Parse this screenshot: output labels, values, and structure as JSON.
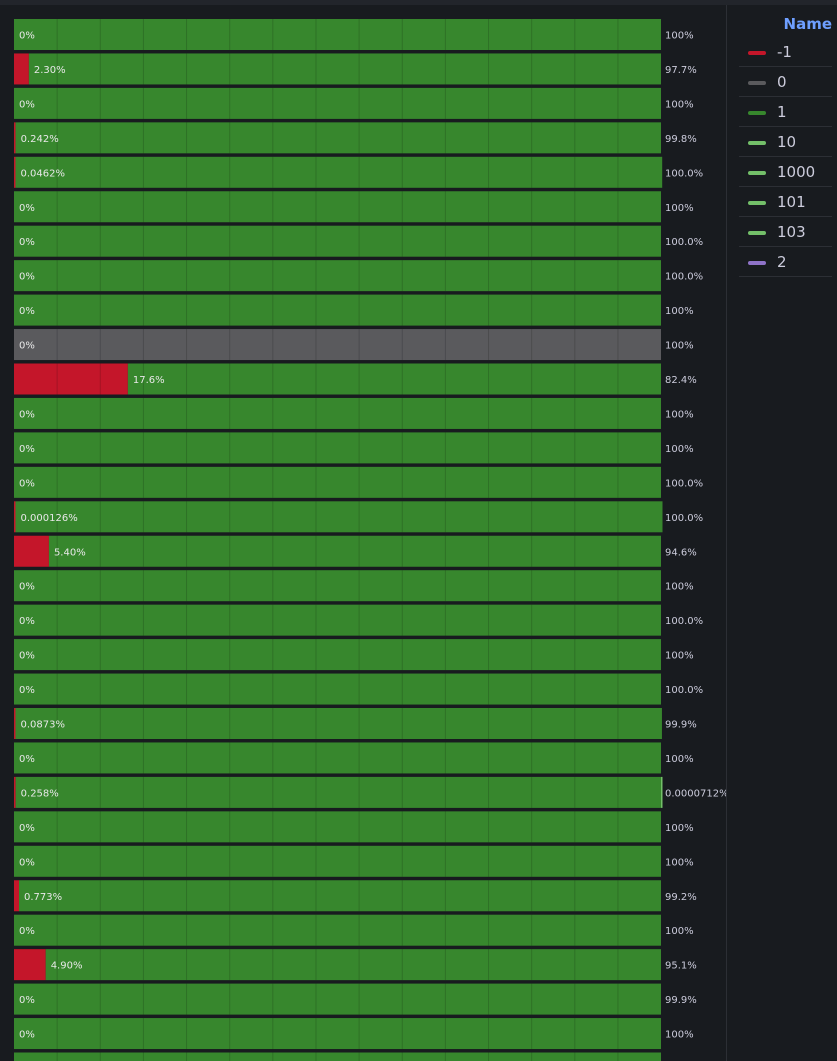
{
  "colors": {
    "neg1": "#c4162a",
    "zero": "#5a5a5d",
    "one": "#37872d",
    "light_green": "#73bf69",
    "purple": "#8f73c8",
    "background": "#181b1f"
  },
  "chart_data": {
    "type": "bar",
    "orientation": "horizontal",
    "stacked": "percent",
    "title": "",
    "xlabel": "",
    "ylabel": "",
    "xlim": [
      0,
      100
    ],
    "grid": true,
    "legend_placement": "right",
    "rows": [
      {
        "segments": [
          {
            "series": "-1",
            "value": 0,
            "label": "0%"
          },
          {
            "series": "1",
            "value": 100,
            "label": "100%"
          }
        ]
      },
      {
        "segments": [
          {
            "series": "-1",
            "value": 2.3,
            "label": "2.30%"
          },
          {
            "series": "1",
            "value": 97.7,
            "label": "97.7%"
          }
        ]
      },
      {
        "segments": [
          {
            "series": "-1",
            "value": 0,
            "label": "0%"
          },
          {
            "series": "1",
            "value": 100,
            "label": "100%"
          }
        ]
      },
      {
        "segments": [
          {
            "series": "-1",
            "value": 0.242,
            "label": "0.242%"
          },
          {
            "series": "1",
            "value": 99.8,
            "label": "99.8%"
          }
        ]
      },
      {
        "segments": [
          {
            "series": "-1",
            "value": 0.0462,
            "label": "0.0462%"
          },
          {
            "series": "1",
            "value": 100.0,
            "label": "100.0%"
          }
        ]
      },
      {
        "segments": [
          {
            "series": "-1",
            "value": 0,
            "label": "0%"
          },
          {
            "series": "1",
            "value": 100,
            "label": "100%"
          }
        ]
      },
      {
        "segments": [
          {
            "series": "-1",
            "value": 0,
            "label": "0%"
          },
          {
            "series": "1",
            "value": 100.0,
            "label": "100.0%"
          }
        ]
      },
      {
        "segments": [
          {
            "series": "-1",
            "value": 0,
            "label": "0%"
          },
          {
            "series": "1",
            "value": 100.0,
            "label": "100.0%"
          }
        ]
      },
      {
        "segments": [
          {
            "series": "-1",
            "value": 0,
            "label": "0%"
          },
          {
            "series": "1",
            "value": 100,
            "label": "100%"
          }
        ]
      },
      {
        "segments": [
          {
            "series": "-1",
            "value": 0,
            "label": "0%"
          },
          {
            "series": "0",
            "value": 100,
            "label": "100%"
          }
        ]
      },
      {
        "segments": [
          {
            "series": "-1",
            "value": 17.6,
            "label": "17.6%"
          },
          {
            "series": "1",
            "value": 82.4,
            "label": "82.4%"
          }
        ]
      },
      {
        "segments": [
          {
            "series": "-1",
            "value": 0,
            "label": "0%"
          },
          {
            "series": "1",
            "value": 100,
            "label": "100%"
          }
        ]
      },
      {
        "segments": [
          {
            "series": "-1",
            "value": 0,
            "label": "0%"
          },
          {
            "series": "1",
            "value": 100,
            "label": "100%"
          }
        ]
      },
      {
        "segments": [
          {
            "series": "-1",
            "value": 0,
            "label": "0%"
          },
          {
            "series": "1",
            "value": 100.0,
            "label": "100.0%"
          }
        ]
      },
      {
        "segments": [
          {
            "series": "-1",
            "value": 0.000126,
            "label": "0.000126%"
          },
          {
            "series": "1",
            "value": 100.0,
            "label": "100.0%"
          }
        ]
      },
      {
        "segments": [
          {
            "series": "-1",
            "value": 5.4,
            "label": "5.40%"
          },
          {
            "series": "1",
            "value": 94.6,
            "label": "94.6%"
          }
        ]
      },
      {
        "segments": [
          {
            "series": "-1",
            "value": 0,
            "label": "0%"
          },
          {
            "series": "1",
            "value": 100,
            "label": "100%"
          }
        ]
      },
      {
        "segments": [
          {
            "series": "-1",
            "value": 0,
            "label": "0%"
          },
          {
            "series": "1",
            "value": 100.0,
            "label": "100.0%"
          }
        ]
      },
      {
        "segments": [
          {
            "series": "-1",
            "value": 0,
            "label": "0%"
          },
          {
            "series": "1",
            "value": 100,
            "label": "100%"
          }
        ]
      },
      {
        "segments": [
          {
            "series": "-1",
            "value": 0,
            "label": "0%"
          },
          {
            "series": "1",
            "value": 100.0,
            "label": "100.0%"
          }
        ]
      },
      {
        "segments": [
          {
            "series": "-1",
            "value": 0.0873,
            "label": "0.0873%"
          },
          {
            "series": "1",
            "value": 99.9,
            "label": "99.9%"
          }
        ]
      },
      {
        "segments": [
          {
            "series": "-1",
            "value": 0,
            "label": "0%"
          },
          {
            "series": "1",
            "value": 100,
            "label": "100%"
          }
        ]
      },
      {
        "segments": [
          {
            "series": "-1",
            "value": 0.258,
            "label": "0.258%"
          },
          {
            "series": "1",
            "value": 99.742,
            "label": ""
          },
          {
            "series": "10",
            "value": 7.12e-05,
            "label": "0.0000712%"
          }
        ]
      },
      {
        "segments": [
          {
            "series": "-1",
            "value": 0,
            "label": "0%"
          },
          {
            "series": "1",
            "value": 100,
            "label": "100%"
          }
        ]
      },
      {
        "segments": [
          {
            "series": "-1",
            "value": 0,
            "label": "0%"
          },
          {
            "series": "1",
            "value": 100,
            "label": "100%"
          }
        ]
      },
      {
        "segments": [
          {
            "series": "-1",
            "value": 0.773,
            "label": "0.773%"
          },
          {
            "series": "1",
            "value": 99.2,
            "label": "99.2%"
          }
        ]
      },
      {
        "segments": [
          {
            "series": "-1",
            "value": 0,
            "label": "0%"
          },
          {
            "series": "1",
            "value": 100,
            "label": "100%"
          }
        ]
      },
      {
        "segments": [
          {
            "series": "-1",
            "value": 4.9,
            "label": "4.90%"
          },
          {
            "series": "1",
            "value": 95.1,
            "label": "95.1%"
          }
        ]
      },
      {
        "segments": [
          {
            "series": "-1",
            "value": 0,
            "label": "0%"
          },
          {
            "series": "1",
            "value": 99.9,
            "label": "99.9%"
          }
        ]
      },
      {
        "segments": [
          {
            "series": "-1",
            "value": 0,
            "label": "0%"
          },
          {
            "series": "1",
            "value": 100,
            "label": "100%"
          }
        ]
      },
      {
        "segments": [
          {
            "series": "-1",
            "value": 0,
            "label": ""
          },
          {
            "series": "1",
            "value": 100,
            "label": ""
          }
        ]
      }
    ]
  },
  "legend": {
    "header": "Name",
    "items": [
      {
        "label": "-1",
        "color": "#c4162a"
      },
      {
        "label": "0",
        "color": "#5a5a5d"
      },
      {
        "label": "1",
        "color": "#37872d"
      },
      {
        "label": "10",
        "color": "#73bf69"
      },
      {
        "label": "1000",
        "color": "#73bf69"
      },
      {
        "label": "101",
        "color": "#73bf69"
      },
      {
        "label": "103",
        "color": "#73bf69"
      },
      {
        "label": "2",
        "color": "#8f73c8"
      }
    ]
  }
}
